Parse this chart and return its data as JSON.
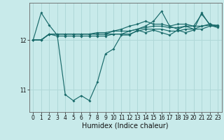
{
  "xlabel": "Humidex (Indice chaleur)",
  "bg_color": "#c8eaea",
  "grid_color": "#b0d8d8",
  "line_color": "#1a6b6b",
  "y_ticks": [
    11,
    12
  ],
  "ylim": [
    10.55,
    12.75
  ],
  "xlim": [
    -0.5,
    23.5
  ],
  "series": [
    [
      12.0,
      12.55,
      12.3,
      12.1,
      10.9,
      10.78,
      10.88,
      10.78,
      11.15,
      11.72,
      11.82,
      12.1,
      12.1,
      12.2,
      12.15,
      12.2,
      12.15,
      12.1,
      12.2,
      12.15,
      12.2,
      12.55,
      12.3,
      12.25
    ],
    [
      12.0,
      12.0,
      12.12,
      12.12,
      12.12,
      12.12,
      12.12,
      12.12,
      12.15,
      12.15,
      12.18,
      12.18,
      12.18,
      12.22,
      12.25,
      12.28,
      12.28,
      12.25,
      12.25,
      12.28,
      12.28,
      12.28,
      12.3,
      12.3
    ],
    [
      12.0,
      12.0,
      12.12,
      12.12,
      12.12,
      12.12,
      12.12,
      12.12,
      12.12,
      12.12,
      12.18,
      12.22,
      12.28,
      12.32,
      12.38,
      12.32,
      12.32,
      12.28,
      12.22,
      12.28,
      12.22,
      12.28,
      12.32,
      12.28
    ],
    [
      12.0,
      12.0,
      12.12,
      12.12,
      12.12,
      12.12,
      12.12,
      12.12,
      12.12,
      12.12,
      12.12,
      12.12,
      12.18,
      12.22,
      12.28,
      12.38,
      12.58,
      12.28,
      12.32,
      12.32,
      12.28,
      12.52,
      12.32,
      12.28
    ],
    [
      12.0,
      12.0,
      12.12,
      12.08,
      12.08,
      12.08,
      12.08,
      12.08,
      12.08,
      12.08,
      12.12,
      12.12,
      12.12,
      12.18,
      12.22,
      12.22,
      12.22,
      12.18,
      12.18,
      12.22,
      12.22,
      12.22,
      12.28,
      12.28
    ]
  ],
  "xlabel_fontsize": 7,
  "tick_fontsize": 5.5
}
